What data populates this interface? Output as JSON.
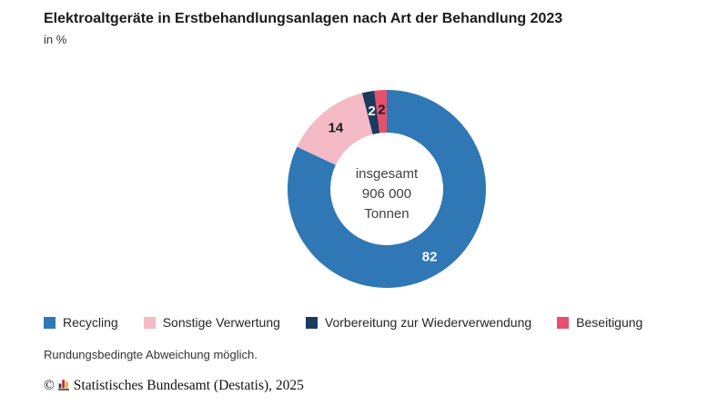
{
  "header": {
    "title": "Elektroaltgeräte in Erstbehandlungsanlagen nach Art der Behandlung 2023",
    "subtitle": "in %"
  },
  "chart_data": {
    "type": "pie",
    "variant": "donut",
    "title": "Elektroaltgeräte in Erstbehandlungsanlagen nach Art der Behandlung 2023",
    "unit": "in %",
    "direction": "clockwise",
    "start_angle_deg": 0,
    "legend_position": "bottom",
    "center_label": [
      "insgesamt",
      "906 000",
      "Tonnen"
    ],
    "segments": [
      {
        "label": "Recycling",
        "value": 82,
        "color": "#2f78b5",
        "value_label_color": "#ffffff"
      },
      {
        "label": "Sonstige Verwertung",
        "value": 14,
        "color": "#f4bac6",
        "value_label_color": "#1a1a1a"
      },
      {
        "label": "Vorbereitung zur Wiederverwendung",
        "value": 2,
        "color": "#1d3a5e",
        "value_label_color": "#ffffff"
      },
      {
        "label": "Beseitigung",
        "value": 2,
        "color": "#e4506e",
        "value_label_color": "#1a1a1a"
      }
    ]
  },
  "footnote": "Rundungsbedingte Abweichung möglich.",
  "copyright": {
    "symbol": "©",
    "text": "Statistisches Bundesamt (Destatis), 2025",
    "logo": {
      "name": "destatis-bars-logo",
      "colors": [
        "#3d3d3d",
        "#c4273c",
        "#edb421"
      ]
    }
  }
}
